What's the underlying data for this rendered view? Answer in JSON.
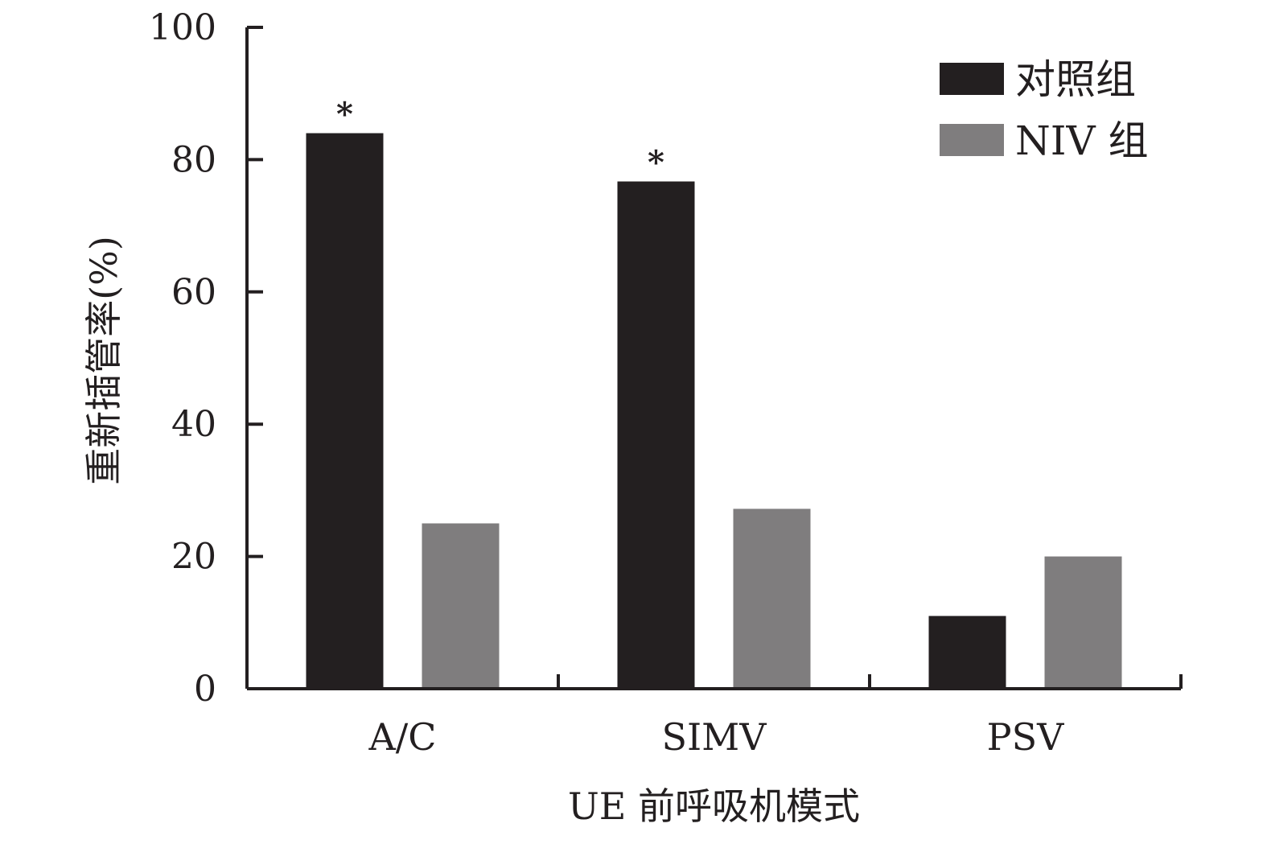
{
  "chart_data": {
    "type": "bar",
    "categories": [
      "A/C",
      "SIMV",
      "PSV"
    ],
    "series": [
      {
        "name": "对照组",
        "values": [
          84,
          76.7,
          11
        ],
        "color": "#231f20"
      },
      {
        "name": "NIV 组",
        "values": [
          25,
          27.2,
          20
        ],
        "color": "#7f7d7e"
      }
    ],
    "xlabel": "UE 前呼吸机模式",
    "ylabel": "重新插管率(%)",
    "ylim": [
      0,
      100
    ],
    "yticks": [
      0,
      20,
      40,
      60,
      80,
      100
    ],
    "annotations": [
      {
        "category": "A/C",
        "series": "对照组",
        "text": "*"
      },
      {
        "category": "SIMV",
        "series": "对照组",
        "text": "*"
      }
    ],
    "grid": false,
    "legend": "top-right"
  }
}
